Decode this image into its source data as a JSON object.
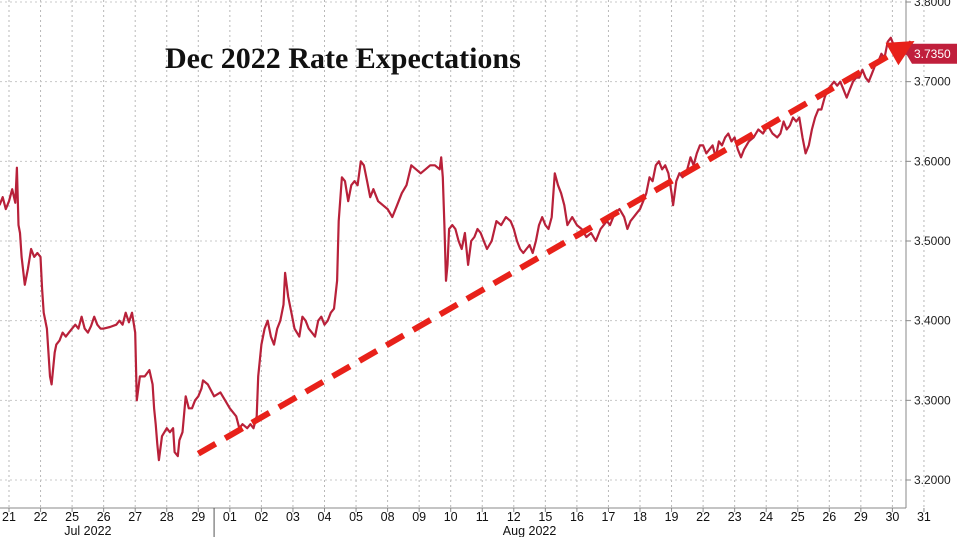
{
  "chart_data": {
    "type": "line",
    "title": "Dec 2022 Rate Expectations",
    "xlabel": "",
    "ylabel": "",
    "ylim": [
      3.17,
      3.8
    ],
    "y_ticks": [
      "3.8000",
      "3.7000",
      "3.6000",
      "3.5000",
      "3.4000",
      "3.3000",
      "3.2000"
    ],
    "y_tick_values": [
      3.8,
      3.7,
      3.6,
      3.5,
      3.4,
      3.3,
      3.2
    ],
    "x_ticks": [
      "21",
      "22",
      "25",
      "26",
      "27",
      "28",
      "29",
      "01",
      "02",
      "03",
      "04",
      "05",
      "08",
      "09",
      "10",
      "11",
      "12",
      "15",
      "16",
      "17",
      "18",
      "19",
      "22",
      "23",
      "24",
      "25",
      "26",
      "29",
      "30",
      "31"
    ],
    "months": [
      {
        "label": "Jul 2022",
        "anchor_index": 2.5
      },
      {
        "label": "Aug 2022",
        "anchor_index": 16.5
      }
    ],
    "month_divider_index": 6.5,
    "grid": true,
    "last_value_label": "3.7350",
    "last_value": 3.735,
    "line_color": "#b8213a",
    "label_bg_color": "#c01f3c",
    "trend_arrow": {
      "color": "#e8211a",
      "start": {
        "x_index": 6.0,
        "y": 3.233
      },
      "end": {
        "x_index": 28.7,
        "y": 3.751
      }
    },
    "series": [
      {
        "values": [
          [
            -0.3,
            3.545
          ],
          [
            -0.2,
            3.555
          ],
          [
            -0.1,
            3.54
          ],
          [
            0.0,
            3.55
          ],
          [
            0.1,
            3.565
          ],
          [
            0.2,
            3.548
          ],
          [
            0.25,
            3.592
          ],
          [
            0.3,
            3.52
          ],
          [
            0.35,
            3.51
          ],
          [
            0.4,
            3.48
          ],
          [
            0.5,
            3.445
          ],
          [
            0.6,
            3.465
          ],
          [
            0.7,
            3.49
          ],
          [
            0.8,
            3.48
          ],
          [
            0.9,
            3.485
          ],
          [
            1.0,
            3.48
          ],
          [
            1.05,
            3.44
          ],
          [
            1.1,
            3.41
          ],
          [
            1.2,
            3.39
          ],
          [
            1.3,
            3.33
          ],
          [
            1.35,
            3.32
          ],
          [
            1.45,
            3.36
          ],
          [
            1.5,
            3.37
          ],
          [
            1.6,
            3.375
          ],
          [
            1.7,
            3.385
          ],
          [
            1.8,
            3.38
          ],
          [
            1.9,
            3.385
          ],
          [
            2.0,
            3.39
          ],
          [
            2.1,
            3.395
          ],
          [
            2.2,
            3.39
          ],
          [
            2.3,
            3.405
          ],
          [
            2.4,
            3.39
          ],
          [
            2.5,
            3.385
          ],
          [
            2.6,
            3.393
          ],
          [
            2.7,
            3.405
          ],
          [
            2.8,
            3.395
          ],
          [
            2.9,
            3.39
          ],
          [
            3.0,
            3.39
          ],
          [
            3.2,
            3.392
          ],
          [
            3.4,
            3.395
          ],
          [
            3.5,
            3.4
          ],
          [
            3.6,
            3.395
          ],
          [
            3.7,
            3.41
          ],
          [
            3.8,
            3.398
          ],
          [
            3.9,
            3.41
          ],
          [
            4.0,
            3.385
          ],
          [
            4.05,
            3.3
          ],
          [
            4.15,
            3.33
          ],
          [
            4.3,
            3.33
          ],
          [
            4.45,
            3.338
          ],
          [
            4.55,
            3.32
          ],
          [
            4.6,
            3.29
          ],
          [
            4.65,
            3.27
          ],
          [
            4.7,
            3.245
          ],
          [
            4.75,
            3.225
          ],
          [
            4.85,
            3.255
          ],
          [
            5.0,
            3.265
          ],
          [
            5.1,
            3.26
          ],
          [
            5.2,
            3.265
          ],
          [
            5.25,
            3.235
          ],
          [
            5.35,
            3.23
          ],
          [
            5.4,
            3.25
          ],
          [
            5.5,
            3.26
          ],
          [
            5.6,
            3.305
          ],
          [
            5.7,
            3.29
          ],
          [
            5.8,
            3.29
          ],
          [
            5.9,
            3.3
          ],
          [
            6.0,
            3.305
          ],
          [
            6.1,
            3.315
          ],
          [
            6.15,
            3.325
          ],
          [
            6.3,
            3.32
          ],
          [
            6.5,
            3.305
          ],
          [
            6.7,
            3.31
          ],
          [
            6.85,
            3.3
          ],
          [
            7.0,
            3.29
          ],
          [
            7.1,
            3.285
          ],
          [
            7.2,
            3.28
          ],
          [
            7.3,
            3.265
          ],
          [
            7.4,
            3.27
          ],
          [
            7.55,
            3.265
          ],
          [
            7.65,
            3.27
          ],
          [
            7.75,
            3.265
          ],
          [
            7.85,
            3.28
          ],
          [
            7.9,
            3.33
          ],
          [
            8.0,
            3.37
          ],
          [
            8.1,
            3.39
          ],
          [
            8.2,
            3.4
          ],
          [
            8.3,
            3.38
          ],
          [
            8.4,
            3.37
          ],
          [
            8.5,
            3.39
          ],
          [
            8.6,
            3.4
          ],
          [
            8.7,
            3.42
          ],
          [
            8.75,
            3.46
          ],
          [
            8.85,
            3.43
          ],
          [
            8.95,
            3.41
          ],
          [
            9.05,
            3.39
          ],
          [
            9.2,
            3.38
          ],
          [
            9.3,
            3.405
          ],
          [
            9.4,
            3.4
          ],
          [
            9.5,
            3.39
          ],
          [
            9.6,
            3.385
          ],
          [
            9.7,
            3.38
          ],
          [
            9.8,
            3.4
          ],
          [
            9.9,
            3.405
          ],
          [
            10.0,
            3.395
          ],
          [
            10.1,
            3.4
          ],
          [
            10.2,
            3.41
          ],
          [
            10.3,
            3.415
          ],
          [
            10.4,
            3.45
          ],
          [
            10.45,
            3.525
          ],
          [
            10.55,
            3.58
          ],
          [
            10.65,
            3.575
          ],
          [
            10.75,
            3.55
          ],
          [
            10.85,
            3.57
          ],
          [
            10.95,
            3.575
          ],
          [
            11.05,
            3.57
          ],
          [
            11.15,
            3.6
          ],
          [
            11.25,
            3.595
          ],
          [
            11.35,
            3.575
          ],
          [
            11.45,
            3.555
          ],
          [
            11.55,
            3.565
          ],
          [
            11.7,
            3.55
          ],
          [
            11.85,
            3.545
          ],
          [
            12.0,
            3.54
          ],
          [
            12.15,
            3.53
          ],
          [
            12.3,
            3.545
          ],
          [
            12.45,
            3.56
          ],
          [
            12.6,
            3.57
          ],
          [
            12.75,
            3.595
          ],
          [
            12.9,
            3.59
          ],
          [
            13.05,
            3.585
          ],
          [
            13.2,
            3.59
          ],
          [
            13.35,
            3.595
          ],
          [
            13.5,
            3.595
          ],
          [
            13.65,
            3.59
          ],
          [
            13.7,
            3.605
          ],
          [
            13.75,
            3.58
          ],
          [
            13.8,
            3.52
          ],
          [
            13.85,
            3.45
          ],
          [
            13.9,
            3.47
          ],
          [
            13.95,
            3.515
          ],
          [
            14.05,
            3.52
          ],
          [
            14.15,
            3.515
          ],
          [
            14.25,
            3.5
          ],
          [
            14.35,
            3.49
          ],
          [
            14.45,
            3.51
          ],
          [
            14.55,
            3.47
          ],
          [
            14.65,
            3.5
          ],
          [
            14.75,
            3.505
          ],
          [
            14.85,
            3.515
          ],
          [
            14.95,
            3.51
          ],
          [
            15.05,
            3.5
          ],
          [
            15.15,
            3.49
          ],
          [
            15.3,
            3.5
          ],
          [
            15.45,
            3.525
          ],
          [
            15.6,
            3.52
          ],
          [
            15.75,
            3.53
          ],
          [
            15.9,
            3.525
          ],
          [
            16.0,
            3.515
          ],
          [
            16.1,
            3.5
          ],
          [
            16.2,
            3.49
          ],
          [
            16.3,
            3.485
          ],
          [
            16.4,
            3.49
          ],
          [
            16.5,
            3.495
          ],
          [
            16.6,
            3.485
          ],
          [
            16.7,
            3.5
          ],
          [
            16.8,
            3.52
          ],
          [
            16.9,
            3.53
          ],
          [
            17.0,
            3.52
          ],
          [
            17.1,
            3.515
          ],
          [
            17.2,
            3.53
          ],
          [
            17.3,
            3.585
          ],
          [
            17.4,
            3.57
          ],
          [
            17.5,
            3.56
          ],
          [
            17.6,
            3.545
          ],
          [
            17.7,
            3.52
          ],
          [
            17.85,
            3.53
          ],
          [
            18.0,
            3.52
          ],
          [
            18.15,
            3.515
          ],
          [
            18.3,
            3.505
          ],
          [
            18.45,
            3.51
          ],
          [
            18.6,
            3.5
          ],
          [
            18.75,
            3.515
          ],
          [
            18.85,
            3.52
          ],
          [
            18.95,
            3.525
          ],
          [
            19.05,
            3.52
          ],
          [
            19.2,
            3.535
          ],
          [
            19.35,
            3.54
          ],
          [
            19.5,
            3.53
          ],
          [
            19.6,
            3.515
          ],
          [
            19.7,
            3.525
          ],
          [
            19.8,
            3.53
          ],
          [
            19.9,
            3.535
          ],
          [
            20.0,
            3.54
          ],
          [
            20.1,
            3.55
          ],
          [
            20.2,
            3.56
          ],
          [
            20.3,
            3.58
          ],
          [
            20.4,
            3.575
          ],
          [
            20.5,
            3.595
          ],
          [
            20.6,
            3.6
          ],
          [
            20.7,
            3.59
          ],
          [
            20.8,
            3.595
          ],
          [
            20.9,
            3.585
          ],
          [
            21.0,
            3.56
          ],
          [
            21.05,
            3.545
          ],
          [
            21.15,
            3.575
          ],
          [
            21.25,
            3.585
          ],
          [
            21.35,
            3.58
          ],
          [
            21.5,
            3.59
          ],
          [
            21.6,
            3.605
          ],
          [
            21.7,
            3.595
          ],
          [
            21.8,
            3.61
          ],
          [
            21.9,
            3.62
          ],
          [
            22.0,
            3.62
          ],
          [
            22.1,
            3.61
          ],
          [
            22.2,
            3.615
          ],
          [
            22.3,
            3.62
          ],
          [
            22.4,
            3.605
          ],
          [
            22.5,
            3.625
          ],
          [
            22.6,
            3.62
          ],
          [
            22.7,
            3.63
          ],
          [
            22.8,
            3.635
          ],
          [
            22.9,
            3.625
          ],
          [
            23.0,
            3.63
          ],
          [
            23.1,
            3.615
          ],
          [
            23.2,
            3.605
          ],
          [
            23.3,
            3.615
          ],
          [
            23.45,
            3.625
          ],
          [
            23.6,
            3.63
          ],
          [
            23.75,
            3.64
          ],
          [
            23.9,
            3.635
          ],
          [
            24.05,
            3.645
          ],
          [
            24.2,
            3.635
          ],
          [
            24.35,
            3.63
          ],
          [
            24.45,
            3.635
          ],
          [
            24.55,
            3.65
          ],
          [
            24.65,
            3.64
          ],
          [
            24.75,
            3.645
          ],
          [
            24.85,
            3.655
          ],
          [
            24.95,
            3.65
          ],
          [
            25.05,
            3.655
          ],
          [
            25.15,
            3.63
          ],
          [
            25.25,
            3.61
          ],
          [
            25.35,
            3.62
          ],
          [
            25.45,
            3.64
          ],
          [
            25.55,
            3.655
          ],
          [
            25.65,
            3.665
          ],
          [
            25.75,
            3.665
          ],
          [
            25.85,
            3.68
          ],
          [
            25.95,
            3.69
          ],
          [
            26.05,
            3.695
          ],
          [
            26.15,
            3.7
          ],
          [
            26.25,
            3.695
          ],
          [
            26.35,
            3.7
          ],
          [
            26.45,
            3.69
          ],
          [
            26.55,
            3.68
          ],
          [
            26.65,
            3.69
          ],
          [
            26.75,
            3.7
          ],
          [
            26.85,
            3.705
          ],
          [
            26.95,
            3.705
          ],
          [
            27.05,
            3.715
          ],
          [
            27.15,
            3.705
          ],
          [
            27.25,
            3.7
          ],
          [
            27.35,
            3.71
          ],
          [
            27.45,
            3.72
          ],
          [
            27.55,
            3.725
          ],
          [
            27.65,
            3.735
          ],
          [
            27.75,
            3.73
          ],
          [
            27.85,
            3.75
          ],
          [
            27.95,
            3.755
          ],
          [
            28.05,
            3.745
          ],
          [
            28.15,
            3.735
          ],
          [
            28.25,
            3.73
          ],
          [
            28.35,
            3.74
          ],
          [
            28.45,
            3.735
          ],
          [
            28.55,
            3.75
          ],
          [
            28.65,
            3.745
          ],
          [
            28.75,
            3.735
          ]
        ]
      }
    ]
  }
}
